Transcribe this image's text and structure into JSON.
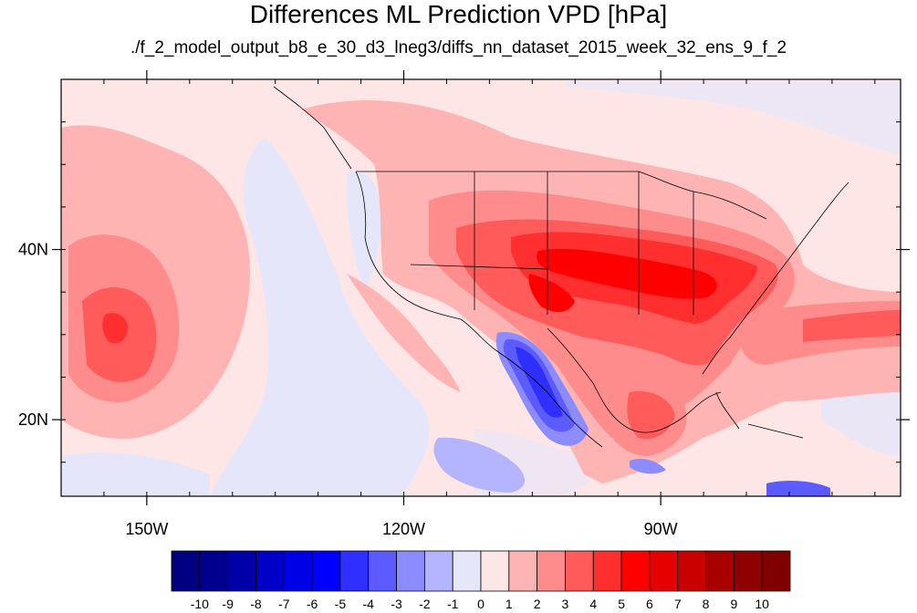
{
  "title": "Differences ML Prediction VPD [hPa]",
  "subtitle": "./f_2_model_output_b8_e_30_d3_lneg3/diffs_nn_dataset_2015_week_32_ens_9_f_2",
  "map": {
    "lon_range": [
      -160,
      -62
    ],
    "lat_range": [
      11,
      60
    ],
    "x_ticks": [
      {
        "lon": -150,
        "label": "150W"
      },
      {
        "lon": -120,
        "label": "120W"
      },
      {
        "lon": -90,
        "label": "90W"
      }
    ],
    "y_ticks": [
      {
        "lat": 40,
        "label": "40N"
      },
      {
        "lat": 20,
        "label": "20N"
      }
    ]
  },
  "colorbar": {
    "levels": [
      "-10",
      "-9",
      "-8",
      "-7",
      "-6",
      "-5",
      "-4",
      "-3",
      "-2",
      "-1",
      "0",
      "1",
      "2",
      "3",
      "4",
      "5",
      "6",
      "7",
      "8",
      "9",
      "10"
    ],
    "colors": [
      "#000080",
      "#00008f",
      "#0000a8",
      "#0000c8",
      "#0000e6",
      "#0000ff",
      "#2f2fff",
      "#5b5bff",
      "#8c8cff",
      "#b4b4ff",
      "#e6e6fa",
      "#ffe6e6",
      "#ffb4b4",
      "#ff8c8c",
      "#ff5b5b",
      "#ff2f2f",
      "#ff0000",
      "#e60000",
      "#c80000",
      "#a80000",
      "#8f0000",
      "#800000"
    ]
  }
}
